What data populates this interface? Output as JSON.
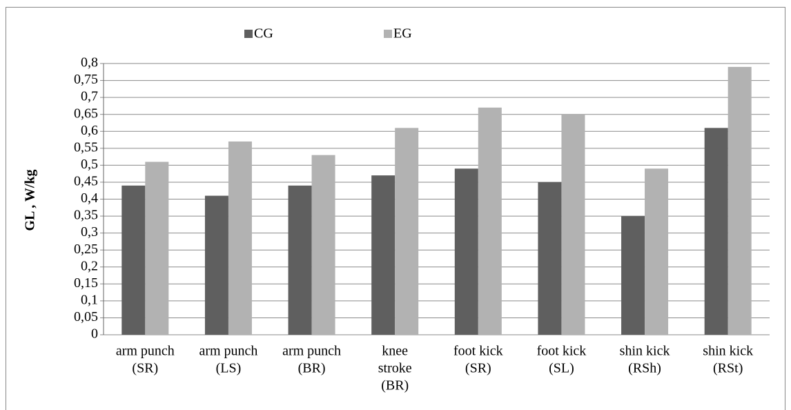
{
  "chart_data": {
    "type": "bar",
    "y_label": "GL , W/kg",
    "categories": [
      [
        "arm punch",
        "(SR)"
      ],
      [
        "arm punch",
        "(LS)"
      ],
      [
        "arm punch",
        "(BR)"
      ],
      [
        "knee",
        "stroke",
        "(BR)"
      ],
      [
        "foot kick",
        "(SR)"
      ],
      [
        "foot kick",
        "(SL)"
      ],
      [
        "shin kick",
        "(RSh)"
      ],
      [
        "shin kick",
        "(RSt)"
      ]
    ],
    "series": [
      {
        "name": "CG",
        "color": "#5f5f5f",
        "values": [
          0.44,
          0.41,
          0.44,
          0.47,
          0.49,
          0.45,
          0.35,
          0.61
        ]
      },
      {
        "name": "EG",
        "color": "#b2b2b2",
        "values": [
          0.51,
          0.57,
          0.53,
          0.61,
          0.67,
          0.65,
          0.49,
          0.79
        ]
      }
    ],
    "ylim": [
      0,
      0.8
    ],
    "yticks": [
      0,
      {
        "value": 0.05,
        "label": "0,05"
      },
      {
        "value": 0.1,
        "label": "0,1"
      },
      {
        "value": 0.15,
        "label": "0,15"
      },
      {
        "value": 0.2,
        "label": "0,2"
      },
      {
        "value": 0.25,
        "label": "0,25"
      },
      {
        "value": 0.3,
        "label": "0,3"
      },
      {
        "value": 0.35,
        "label": "0,35"
      },
      {
        "value": 0.4,
        "label": "0,4"
      },
      {
        "value": 0.45,
        "label": "0,45"
      },
      {
        "value": 0.5,
        "label": "0,5"
      },
      {
        "value": 0.55,
        "label": "0,55"
      },
      {
        "value": 0.6,
        "label": "0,6"
      },
      {
        "value": 0.65,
        "label": "0,65"
      },
      {
        "value": 0.7,
        "label": "0,7"
      },
      {
        "value": 0.75,
        "label": "0,75"
      },
      {
        "value": 0.8,
        "label": "0,8"
      }
    ],
    "grid": true,
    "legend": "top"
  }
}
